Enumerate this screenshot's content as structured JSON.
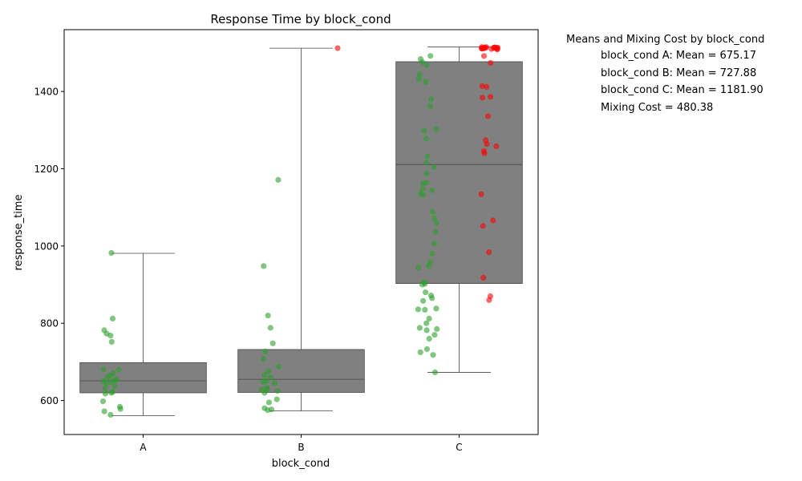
{
  "chart_data": {
    "type": "box",
    "title": "Response Time by block_cond",
    "xlabel": "block_cond",
    "ylabel": "response_time",
    "ylim": [
      512,
      1560
    ],
    "yticks": [
      600,
      800,
      1000,
      1200,
      1400
    ],
    "categories": [
      "A",
      "B",
      "C"
    ],
    "grid": false,
    "box_color": "#808080",
    "point_colors": {
      "green": "#2ca02c",
      "red": "#ff0000"
    },
    "boxes": [
      {
        "category": "A",
        "whisker_low": 561,
        "q1": 620,
        "median": 651,
        "q3": 698,
        "whisker_high": 981
      },
      {
        "category": "B",
        "whisker_low": 573,
        "q1": 621,
        "median": 655,
        "q3": 732,
        "whisker_high": 1512
      },
      {
        "category": "C",
        "whisker_low": 673,
        "q1": 903,
        "median": 1211,
        "q3": 1477,
        "whisker_high": 1515
      }
    ],
    "points": [
      {
        "category": "A",
        "color": "green",
        "values": [
          982,
          812,
          782,
          773,
          768,
          752,
          681,
          680,
          670,
          665,
          660,
          655,
          652,
          650,
          648,
          645,
          637,
          632,
          622,
          620,
          618,
          598,
          584,
          578,
          572,
          563
        ]
      },
      {
        "category": "B",
        "color": "green",
        "values": [
          1171,
          948,
          820,
          788,
          748,
          727,
          708,
          688,
          676,
          666,
          660,
          650,
          648,
          645,
          632,
          630,
          628,
          625,
          620,
          603,
          595,
          580,
          577,
          575
        ]
      },
      {
        "category": "B",
        "color": "red",
        "values": [
          1512
        ]
      },
      {
        "category": "C",
        "color": "green",
        "values": [
          1492,
          1484,
          1476,
          1468,
          1444,
          1432,
          1425,
          1380,
          1362,
          1302,
          1298,
          1278,
          1232,
          1216,
          1204,
          1188,
          1164,
          1162,
          1148,
          1144,
          1136,
          1132,
          1088,
          1072,
          1060,
          1036,
          1006,
          980,
          958,
          948,
          944,
          906,
          902,
          900,
          880,
          872,
          865,
          858,
          838,
          836,
          835,
          812,
          800,
          788,
          785,
          782,
          770,
          760,
          733,
          725,
          718,
          673
        ]
      },
      {
        "category": "C",
        "color": "red",
        "values": [
          1515,
          1515,
          1514,
          1514,
          1514,
          1513,
          1513,
          1513,
          1513,
          1512,
          1512,
          1511,
          1511,
          1510,
          1510,
          1509,
          1492,
          1474,
          1414,
          1412,
          1386,
          1384,
          1336,
          1274,
          1264,
          1258,
          1246,
          1240,
          1134,
          1066,
          1052,
          984,
          918,
          870,
          860
        ]
      }
    ]
  },
  "stats": {
    "title": "Means and Mixing Cost by block_cond",
    "lines": [
      "block_cond A: Mean = 675.17",
      "block_cond B: Mean = 727.88",
      "block_cond C: Mean = 1181.90",
      "Mixing Cost = 480.38"
    ]
  }
}
